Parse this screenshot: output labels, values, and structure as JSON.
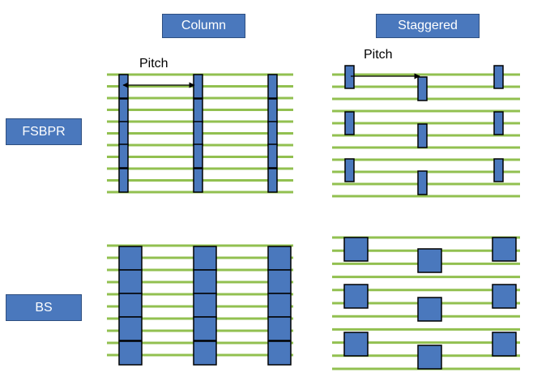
{
  "headers": {
    "column": "Column",
    "staggered": "Staggered"
  },
  "rows": {
    "fsbpr": "FSBPR",
    "bs": "BS"
  },
  "pitch_label": "Pitch",
  "colors": {
    "line": "#92c050",
    "block": "#4a78bd",
    "block_stroke": "#000000",
    "tag": "#4a78bd"
  }
}
